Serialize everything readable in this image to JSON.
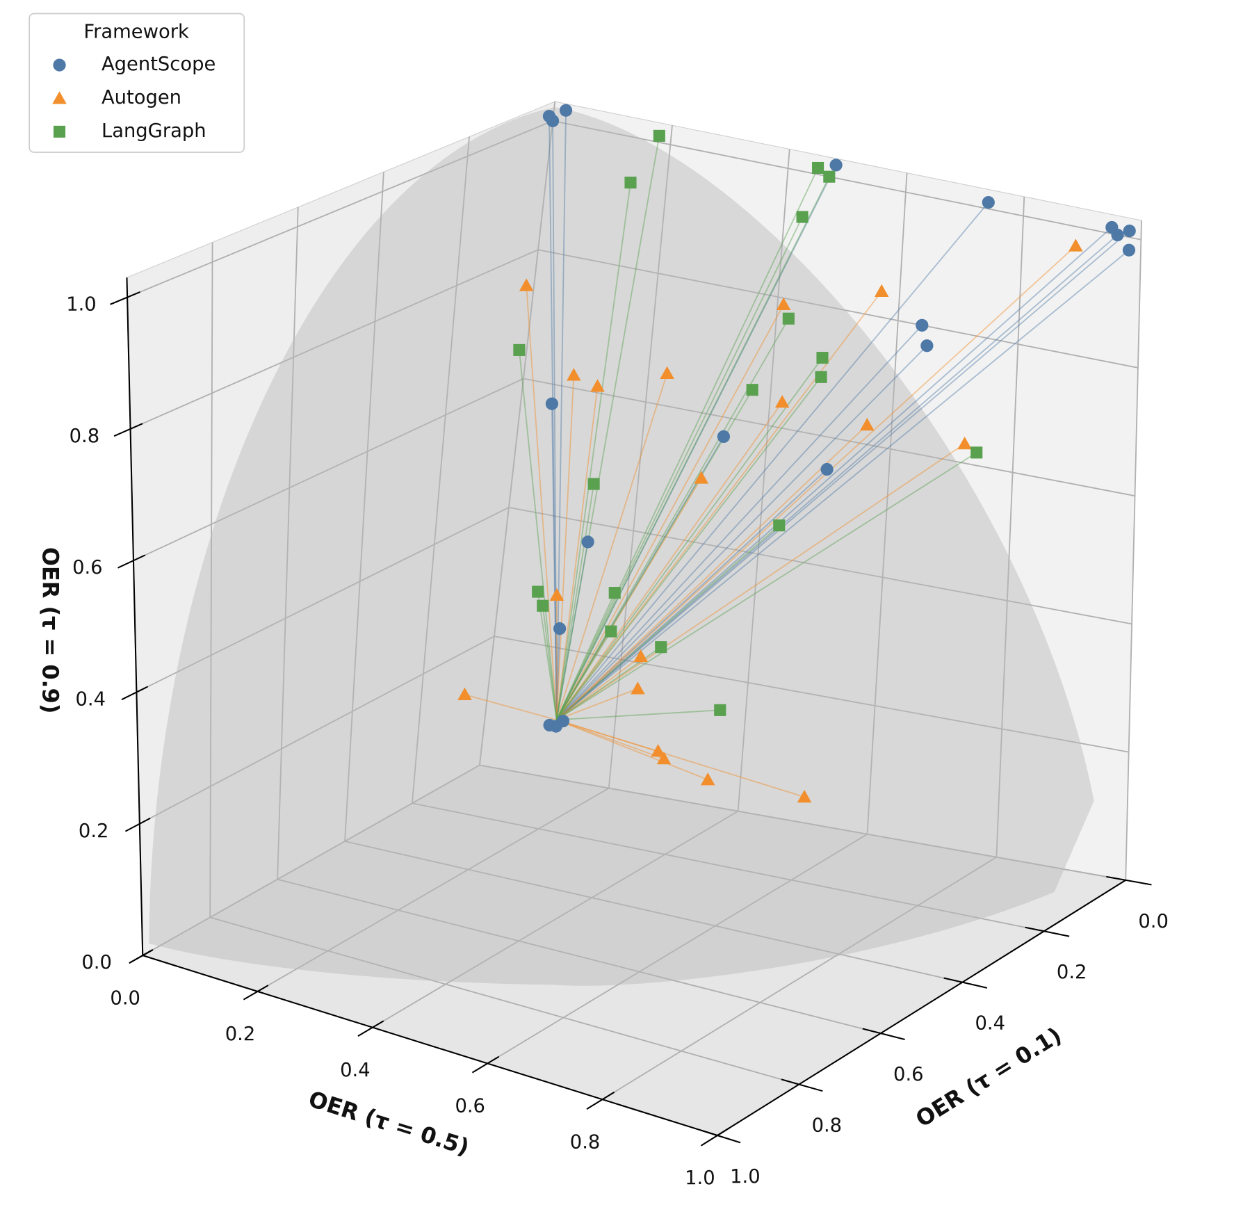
{
  "chart_data": {
    "type": "scatter",
    "xlabel": "OER (τ = 0.1)",
    "ylabel": "OER (τ = 0.5)",
    "zlabel": "OER (τ = 0.9)",
    "legend_title": "Framework",
    "legend": "upper left",
    "grid": true,
    "xlim": [
      0,
      1
    ],
    "ylim": [
      0,
      1
    ],
    "zlim": [
      0,
      1.03
    ],
    "xticks": [
      {
        "value": 0,
        "label": "0.0"
      },
      0.2,
      0.4,
      0.6,
      0.8,
      {
        "value": 1,
        "label": "1.0"
      }
    ],
    "yticks": [
      {
        "value": 0,
        "label": "0.0"
      },
      0.2,
      0.4,
      0.6,
      0.8,
      {
        "value": 1,
        "label": "1.0"
      }
    ],
    "zticks": [
      {
        "value": 0,
        "label": "0.0"
      },
      0.2,
      0.4,
      0.6,
      0.8,
      {
        "value": 1,
        "label": "1.0"
      }
    ],
    "line_origin": {
      "x": 0,
      "y": 0.11,
      "z": 0.09
    },
    "series": [
      {
        "name": "AgentScope",
        "color": "#4e79a7",
        "marker": "circle",
        "x": [
          0.01,
          0,
          0,
          0,
          0,
          0,
          0,
          0,
          0,
          0,
          0,
          0,
          0,
          0,
          0,
          0,
          0,
          0,
          0
        ],
        "y": [
          0.0,
          0.02,
          0.0,
          0.48,
          0.74,
          0.95,
          0.96,
          0.98,
          0.98,
          0.64,
          0.65,
          0.05,
          0.33,
          0.5,
          0.13,
          0.1,
          0.1,
          0.11,
          0.12
        ],
        "z": [
          1.01,
          1.02,
          1.0,
          1.02,
          1.01,
          1.01,
          1.0,
          1.01,
          0.98,
          0.8,
          0.77,
          0.57,
          0.57,
          0.55,
          0.37,
          0.23,
          0.08,
          0.08,
          0.09
        ]
      },
      {
        "name": "Autogen",
        "color": "#f28e2b",
        "marker": "triangle",
        "x": [
          0.02,
          0,
          0,
          0,
          0,
          0,
          0,
          0,
          0,
          0,
          0,
          0,
          0,
          0,
          0.07,
          0,
          0,
          0,
          0
        ],
        "y": [
          0,
          0.41,
          0.57,
          0.89,
          0.08,
          0.12,
          0.23,
          0.42,
          0.56,
          0.72,
          0.3,
          0.09,
          0.23,
          0.23,
          0,
          0.27,
          0.28,
          0.35,
          0.5
        ],
        "z": [
          0.75,
          0.79,
          0.84,
          0.97,
          0.62,
          0.61,
          0.65,
          0.64,
          0.63,
          0.63,
          0.5,
          0.28,
          0.21,
          0.16,
          0.13,
          0.07,
          0.06,
          0.04,
          0.04
        ]
      },
      {
        "name": "LangGraph",
        "color": "#59a14f",
        "marker": "square",
        "x": [
          0,
          0,
          0,
          0,
          0,
          0,
          0.02,
          0,
          0,
          0,
          0,
          0,
          0,
          0,
          0,
          0,
          0,
          0,
          0
        ],
        "y": [
          0.18,
          0.14,
          0.45,
          0.47,
          0.43,
          0.42,
          0,
          0.48,
          0.48,
          0.37,
          0.74,
          0.13,
          0.43,
          0.06,
          0.07,
          0.18,
          0.18,
          0.26,
          0.36
        ],
        "z": [
          1.01,
          0.93,
          1.01,
          1.0,
          0.93,
          0.77,
          0.65,
          0.72,
          0.69,
          0.65,
          0.62,
          0.46,
          0.45,
          0.28,
          0.26,
          0.3,
          0.24,
          0.23,
          0.15
        ]
      }
    ]
  }
}
